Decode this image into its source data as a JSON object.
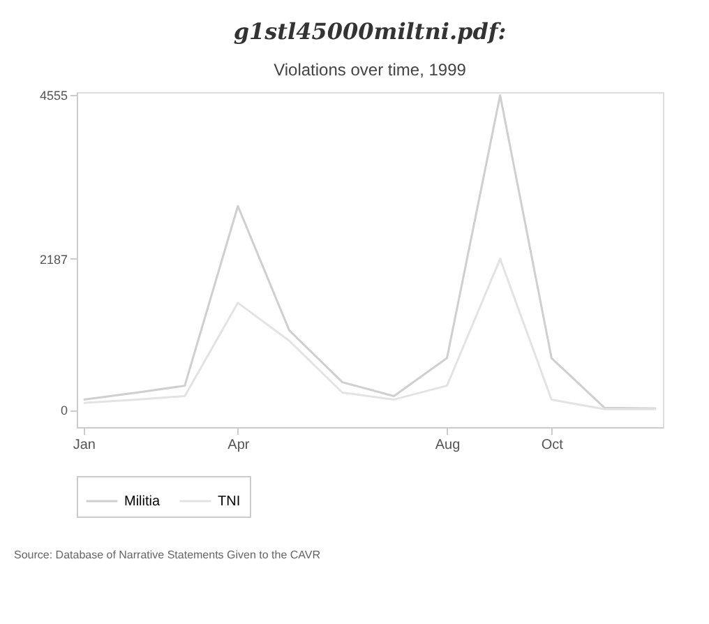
{
  "chart_data": {
    "type": "line",
    "title": "g1stl45000miltni.pdf:",
    "subtitle": "Violations over time, 1999",
    "x": [
      "1999-01",
      "1999-02",
      "1999-03",
      "1999-04",
      "1999-05",
      "1999-06",
      "1999-07",
      "1999-08",
      "1999-09",
      "1999-10",
      "1999-11",
      "1999-12"
    ],
    "series": [
      {
        "name": "Militia",
        "color": "#cfcfcf",
        "values": [
          150,
          250,
          350,
          2950,
          1150,
          400,
          200,
          750,
          4555,
          750,
          30,
          20
        ]
      },
      {
        "name": "TNI",
        "color": "#e3e3e3",
        "values": [
          100,
          150,
          200,
          1550,
          1000,
          250,
          150,
          350,
          2187,
          150,
          10,
          10
        ]
      }
    ],
    "xlim": [
      "1998-12-28",
      "1999-12-05"
    ],
    "ylim": [
      -250,
      4600
    ],
    "xticks": [
      {
        "value": "1999-01",
        "label": "Jan"
      },
      {
        "value": "1999-04",
        "label": "Apr"
      },
      {
        "value": "1999-08",
        "label": "Aug"
      },
      {
        "value": "1999-10",
        "label": "Oct"
      }
    ],
    "yticks": [
      0,
      2187,
      4555
    ],
    "grid": false,
    "legend": "bottom",
    "marker": "none",
    "line_style": "solid",
    "annotations": [
      "Source: Database of Narrative Statements Given to the CAVR"
    ]
  }
}
